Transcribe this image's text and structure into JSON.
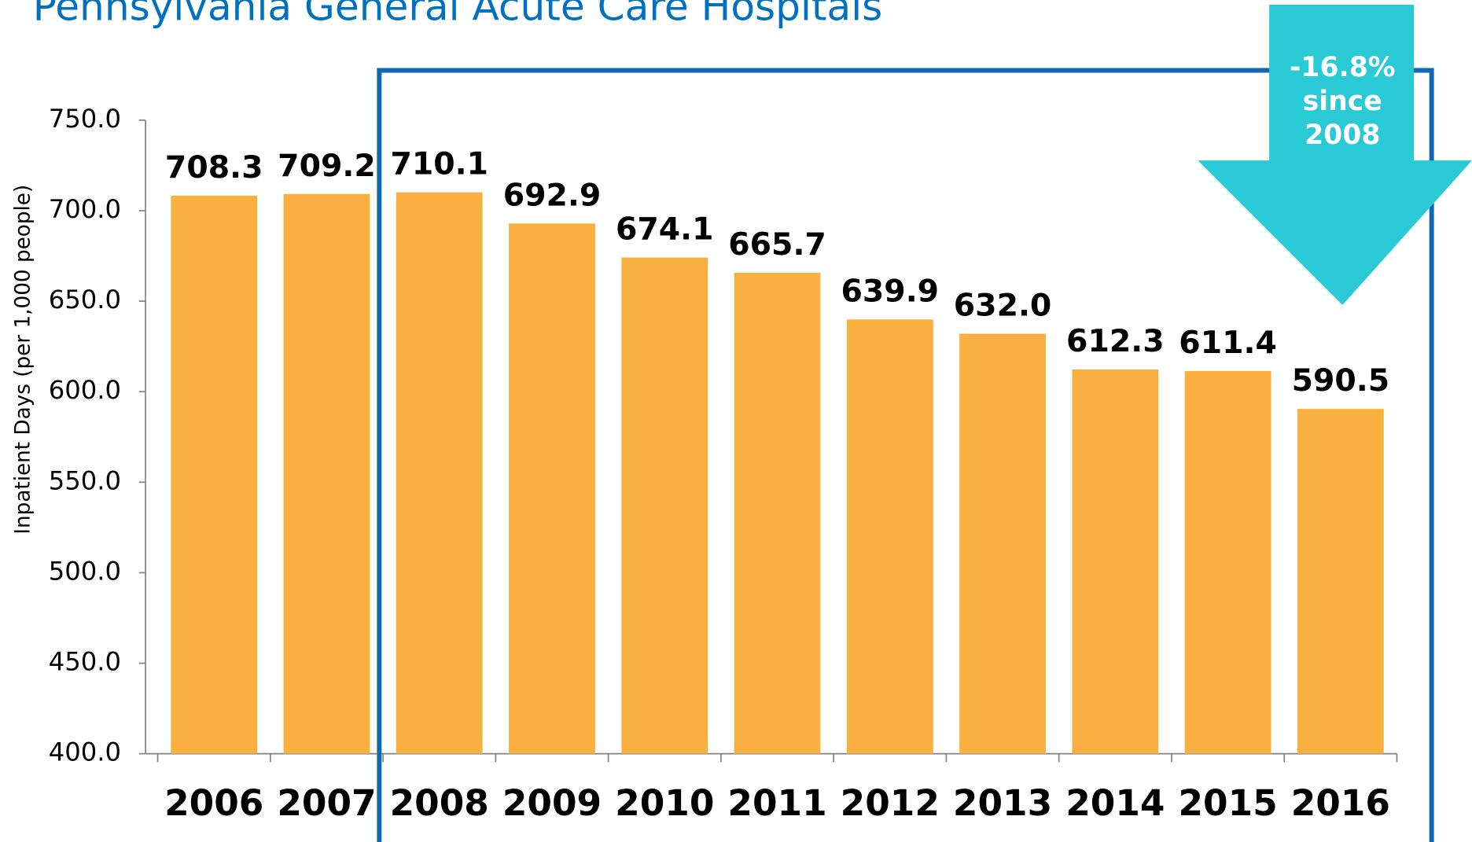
{
  "chart_data": {
    "type": "bar",
    "title": "Pennsylvania General Acute Care Hospitals",
    "y_axis_label": "Inpatient Days (per 1,000 people)",
    "categories": [
      "2006",
      "2007",
      "2008",
      "2009",
      "2010",
      "2011",
      "2012",
      "2013",
      "2014",
      "2015",
      "2016"
    ],
    "values": [
      708.3,
      709.2,
      710.1,
      692.9,
      674.1,
      665.7,
      639.9,
      632.0,
      612.3,
      611.4,
      590.5
    ],
    "value_labels": [
      "708.3",
      "709.2",
      "710.1",
      "692.9",
      "674.1",
      "665.7",
      "639.9",
      "632.0",
      "612.3",
      "611.4",
      "590.5"
    ],
    "color": "#f9b041",
    "ylim": [
      400,
      750
    ],
    "yticks": [
      {
        "value": 400,
        "label": "400.0"
      },
      {
        "value": 450,
        "label": "450.0"
      },
      {
        "value": 500,
        "label": "500.0"
      },
      {
        "value": 550,
        "label": "550.0"
      },
      {
        "value": 600,
        "label": "600.0"
      },
      {
        "value": 650,
        "label": "650.0"
      },
      {
        "value": 700,
        "label": "700.0"
      },
      {
        "value": 750,
        "label": "750.0"
      }
    ],
    "annotation": [
      "-16.8%",
      "since",
      "2008"
    ]
  }
}
